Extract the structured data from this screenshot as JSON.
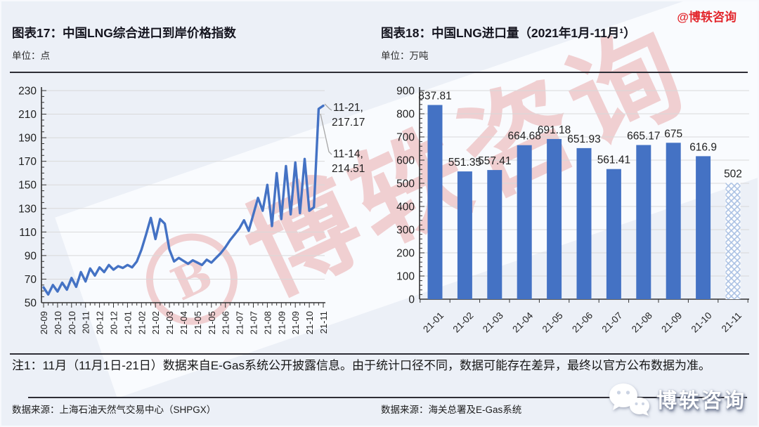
{
  "header": {
    "handle": "@博轶咨询",
    "left": {
      "title": "图表17：中国LNG综合进口到岸价格指数",
      "unit": "单位：点"
    },
    "right": {
      "title": "图表18：中国LNG进口量（2021年1月-11月¹）",
      "unit": "单位：万吨"
    }
  },
  "footnote": "注1：11月（11月1日-21日）数据来自E-Gas系统公开披露信息。由于统计口径不同，数据可能存在差异，最终以官方公布数据为准。",
  "sources": {
    "left": "数据来源：上海石油天然气交易中心（SHPGX）",
    "right": "数据来源：海关总署及E-Gas系统"
  },
  "watermark": {
    "letter": "B",
    "brand": "博轶咨询"
  },
  "colors": {
    "series_blue": "#4472C4",
    "grid": "#D9D9D9",
    "axis": "#333333",
    "red": "#E3282E",
    "hatch": "#A9C0E3"
  },
  "chart_data": [
    {
      "type": "line",
      "title": "图表17：中国LNG综合进口到岸价格指数",
      "ylabel": "点",
      "ylim": [
        50,
        230
      ],
      "ytick_step": 20,
      "grid": true,
      "x_label_every": 3,
      "x_tick_labels": [
        "20-09",
        "20-10",
        "20-10",
        "20-11",
        "20-12",
        "20-12",
        "21-01",
        "21-02",
        "21-02",
        "21-03",
        "21-04",
        "21-05",
        "21-05",
        "21-06",
        "21-07",
        "21-07",
        "21-08",
        "21-09",
        "21-09",
        "21-10",
        "21-11"
      ],
      "values": [
        63,
        57,
        65,
        59.5,
        67,
        61,
        71,
        63.5,
        76,
        68,
        79,
        73,
        80,
        76,
        82,
        78,
        81,
        79.5,
        82,
        80,
        85,
        95,
        108,
        122,
        104,
        121,
        117,
        95,
        85,
        88,
        85.5,
        83,
        86,
        84,
        82,
        86.5,
        84,
        88,
        92,
        97,
        103,
        108,
        113,
        120,
        111,
        125,
        139,
        128,
        150,
        115,
        160,
        121,
        166,
        125,
        169,
        126,
        172,
        128,
        131,
        214.51,
        217.17
      ],
      "annotations": [
        {
          "date": "11-21",
          "value": 217.17,
          "label_line1": "11-21,",
          "label_line2": "217.17",
          "point_index": 60
        },
        {
          "date": "11-14",
          "value": 214.51,
          "label_line1": "11-14,",
          "label_line2": "214.51",
          "point_index": 59
        }
      ]
    },
    {
      "type": "bar",
      "title": "图表18：中国LNG进口量（2021年1月-11月¹）",
      "ylabel": "万吨",
      "ylim": [
        0,
        900
      ],
      "ytick_step": 100,
      "grid": true,
      "categories": [
        "21-01",
        "21-02",
        "21-03",
        "21-04",
        "21-05",
        "21-06",
        "21-07",
        "21-08",
        "21-09",
        "21-10",
        "21-11"
      ],
      "values": [
        837.81,
        551.35,
        557.41,
        664.68,
        691.18,
        651.93,
        561.41,
        665.17,
        675,
        616.9,
        502
      ],
      "data_labels": [
        "837.81",
        "551.35",
        "557.41",
        "664.68",
        "691.18",
        "651.93",
        "561.41",
        "665.17",
        "675",
        "616.9",
        "502"
      ],
      "last_bar_style": "hatched"
    }
  ]
}
